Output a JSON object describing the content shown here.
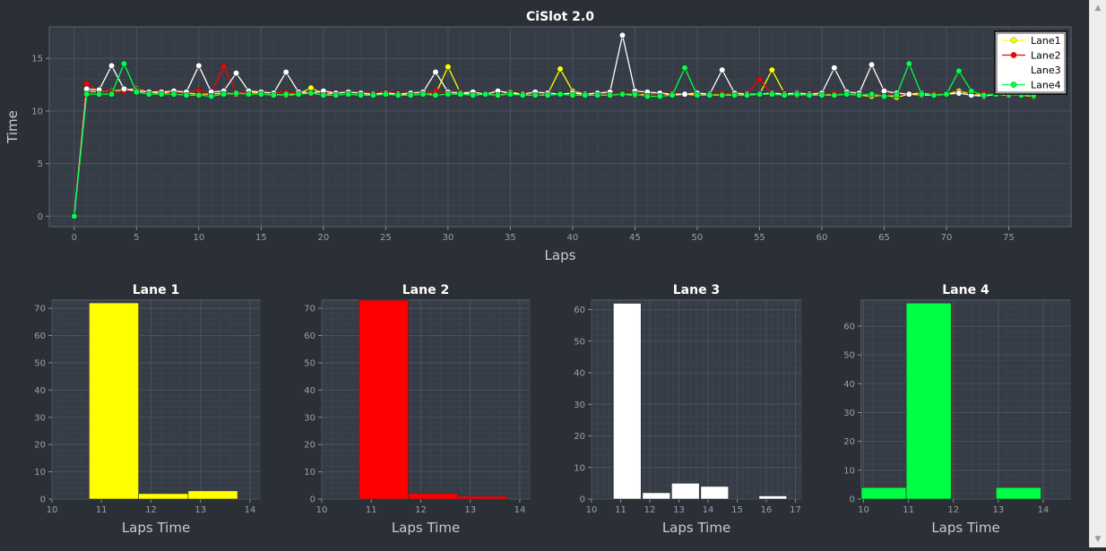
{
  "window_title": "",
  "chart_data": [
    {
      "type": "line",
      "title": "CiSlot 2.0",
      "xlabel": "Laps",
      "ylabel": "Time",
      "xlim": [
        -2,
        80
      ],
      "ylim": [
        -1,
        18
      ],
      "x_ticks": [
        0,
        5,
        10,
        15,
        20,
        25,
        30,
        35,
        40,
        45,
        50,
        55,
        60,
        65,
        70,
        75
      ],
      "y_ticks": [
        0,
        5,
        10,
        15
      ],
      "grid": true,
      "legend_position": "top-right",
      "series": [
        {
          "name": "Lane1",
          "color": "#ffff00",
          "values": [
            0,
            11.9,
            11.8,
            11.9,
            12.0,
            12.1,
            11.8,
            11.7,
            11.8,
            11.7,
            11.6,
            11.6,
            11.7,
            11.6,
            11.8,
            11.7,
            11.6,
            11.5,
            11.6,
            12.2,
            11.6,
            11.7,
            11.8,
            11.6,
            11.6,
            11.7,
            11.6,
            11.5,
            11.6,
            11.6,
            14.2,
            11.7,
            11.6,
            11.6,
            11.5,
            11.8,
            11.6,
            11.7,
            11.6,
            14.0,
            11.9,
            11.6,
            11.7,
            11.6,
            11.6,
            11.5,
            11.6,
            11.7,
            11.5,
            11.6,
            11.5,
            11.6,
            11.5,
            11.6,
            11.5,
            11.6,
            13.9,
            11.7,
            11.5,
            11.6,
            11.6,
            11.5,
            11.6,
            11.5,
            11.4,
            11.5,
            11.3,
            11.6,
            11.5,
            11.5,
            11.6,
            11.9,
            11.6,
            11.5,
            11.6,
            11.6,
            11.5,
            11.4
          ]
        },
        {
          "name": "Lane2",
          "color": "#ff0000",
          "values": [
            0,
            12.6,
            11.9,
            11.8,
            11.9,
            12.0,
            11.8,
            11.9,
            11.7,
            11.8,
            11.9,
            11.8,
            14.2,
            11.8,
            11.7,
            11.6,
            11.7,
            11.8,
            11.7,
            11.6,
            11.7,
            11.8,
            11.7,
            11.6,
            11.7,
            11.8,
            11.7,
            11.6,
            11.7,
            11.9,
            11.7,
            11.8,
            11.7,
            11.6,
            11.7,
            11.6,
            11.7,
            11.6,
            11.7,
            11.6,
            11.7,
            11.6,
            11.7,
            11.6,
            11.7,
            11.6,
            11.7,
            11.6,
            11.7,
            11.6,
            11.7,
            11.6,
            11.7,
            11.6,
            11.7,
            13.0,
            11.6,
            11.7,
            11.6,
            11.7,
            11.6,
            11.7,
            11.6,
            11.7,
            11.6,
            11.7,
            11.6,
            11.7,
            11.6,
            11.7,
            11.6,
            11.7,
            11.6,
            11.7,
            11.6,
            11.7,
            11.6,
            11.7
          ]
        },
        {
          "name": "Lane3",
          "color": "#ffffff",
          "values": [
            0,
            12.1,
            12.0,
            14.3,
            12.1,
            11.9,
            11.8,
            11.8,
            11.9,
            11.8,
            14.3,
            11.8,
            11.9,
            13.6,
            11.9,
            11.8,
            11.7,
            13.7,
            11.8,
            11.7,
            11.9,
            11.7,
            11.8,
            11.7,
            11.6,
            11.7,
            11.6,
            11.7,
            11.8,
            13.7,
            11.8,
            11.7,
            11.8,
            11.6,
            11.9,
            11.7,
            11.6,
            11.8,
            11.7,
            11.6,
            11.7,
            11.6,
            11.7,
            11.8,
            17.2,
            11.9,
            11.8,
            11.7,
            11.6,
            11.6,
            11.7,
            11.6,
            13.9,
            11.7,
            11.6,
            11.6,
            11.7,
            11.6,
            11.7,
            11.6,
            11.7,
            14.1,
            11.8,
            11.7,
            14.4,
            11.9,
            11.7,
            11.6,
            11.7,
            11.5,
            11.6,
            11.7,
            11.5,
            11.4,
            11.6,
            11.5,
            11.7,
            11.6
          ]
        },
        {
          "name": "Lane4",
          "color": "#00ff44",
          "values": [
            0,
            11.6,
            11.6,
            11.6,
            14.5,
            11.8,
            11.6,
            11.6,
            11.6,
            11.5,
            11.5,
            11.4,
            11.6,
            11.7,
            11.6,
            11.6,
            11.5,
            11.6,
            11.6,
            11.7,
            11.5,
            11.5,
            11.6,
            11.5,
            11.5,
            11.6,
            11.5,
            11.5,
            11.6,
            11.5,
            11.6,
            11.6,
            11.5,
            11.6,
            11.5,
            11.6,
            11.5,
            11.5,
            11.5,
            11.6,
            11.5,
            11.5,
            11.5,
            11.5,
            11.6,
            11.6,
            11.4,
            11.4,
            11.5,
            14.1,
            11.5,
            11.5,
            11.5,
            11.5,
            11.5,
            11.6,
            11.6,
            11.5,
            11.6,
            11.5,
            11.5,
            11.5,
            11.6,
            11.5,
            11.6,
            11.4,
            11.5,
            14.5,
            11.6,
            11.5,
            11.6,
            13.8,
            11.9,
            11.5,
            11.6,
            11.6,
            11.5,
            11.5
          ]
        }
      ]
    },
    {
      "type": "bar",
      "title": "Lane 1",
      "xlabel": "Laps Time",
      "ylabel": "",
      "color": "#ffff00",
      "xlim": [
        10,
        14.2
      ],
      "ylim": [
        0,
        73
      ],
      "x_ticks": [
        10,
        11,
        12,
        13,
        14
      ],
      "y_ticks": [
        0,
        10,
        20,
        30,
        40,
        50,
        60,
        70
      ],
      "bins": [
        {
          "start": 10.75,
          "end": 11.75,
          "count": 72
        },
        {
          "start": 11.75,
          "end": 12.75,
          "count": 2
        },
        {
          "start": 12.75,
          "end": 13.75,
          "count": 3
        }
      ]
    },
    {
      "type": "bar",
      "title": "Lane 2",
      "xlabel": "Laps Time",
      "ylabel": "",
      "color": "#ff0000",
      "xlim": [
        10,
        14.2
      ],
      "ylim": [
        0,
        73
      ],
      "x_ticks": [
        10,
        11,
        12,
        13,
        14
      ],
      "y_ticks": [
        0,
        10,
        20,
        30,
        40,
        50,
        60,
        70
      ],
      "bins": [
        {
          "start": 10.75,
          "end": 11.75,
          "count": 73
        },
        {
          "start": 11.75,
          "end": 12.75,
          "count": 2
        },
        {
          "start": 12.75,
          "end": 13.75,
          "count": 1
        }
      ]
    },
    {
      "type": "bar",
      "title": "Lane 3",
      "xlabel": "Laps Time",
      "ylabel": "",
      "color": "#ffffff",
      "xlim": [
        10,
        17.2
      ],
      "ylim": [
        0,
        63
      ],
      "x_ticks": [
        10,
        11,
        12,
        13,
        14,
        15,
        16,
        17
      ],
      "y_ticks": [
        0,
        10,
        20,
        30,
        40,
        50,
        60
      ],
      "bins": [
        {
          "start": 10.75,
          "end": 11.7,
          "count": 62
        },
        {
          "start": 11.75,
          "end": 12.7,
          "count": 2
        },
        {
          "start": 12.75,
          "end": 13.7,
          "count": 5
        },
        {
          "start": 13.75,
          "end": 14.7,
          "count": 4
        },
        {
          "start": 15.75,
          "end": 16.7,
          "count": 1
        }
      ]
    },
    {
      "type": "bar",
      "title": "Lane 4",
      "xlabel": "Laps Time",
      "ylabel": "",
      "color": "#00ff44",
      "xlim": [
        9.95,
        14.6
      ],
      "ylim": [
        0,
        69
      ],
      "x_ticks": [
        10,
        11,
        12,
        13,
        14
      ],
      "y_ticks": [
        0,
        10,
        20,
        30,
        40,
        50,
        60
      ],
      "bins": [
        {
          "start": 9.95,
          "end": 10.95,
          "count": 4
        },
        {
          "start": 10.95,
          "end": 11.95,
          "count": 68
        },
        {
          "start": 12.95,
          "end": 13.95,
          "count": 4
        }
      ]
    }
  ]
}
